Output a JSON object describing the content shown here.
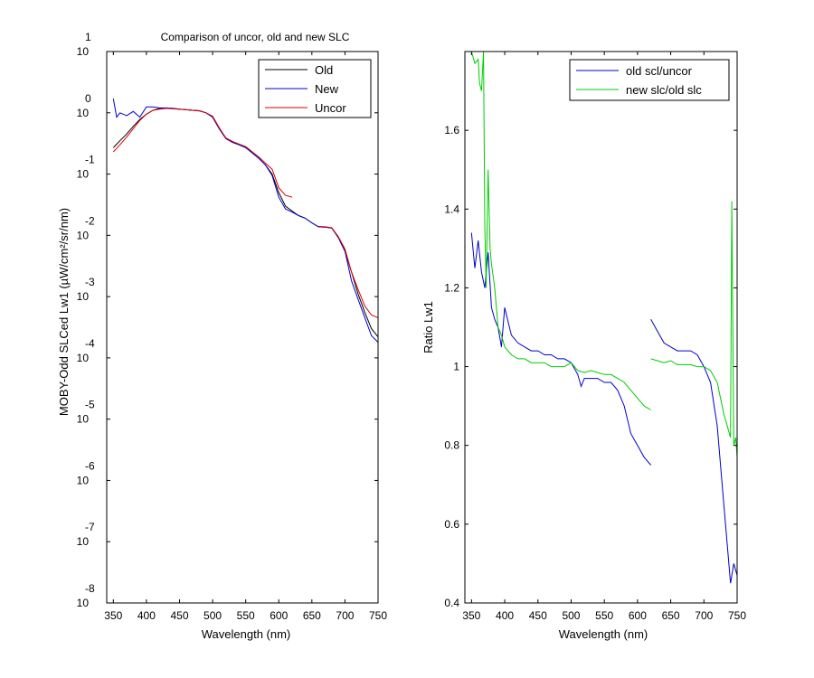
{
  "chart_data": [
    {
      "type": "line",
      "title": "Comparison of uncor, old and new SLC",
      "xlabel": "Wavelength (nm)",
      "ylabel": "MOBY-Odd SLCed Lw1 (µW/cm²/sr/nm)",
      "xlim": [
        340,
        750
      ],
      "ylim": [
        1e-08,
        10
      ],
      "yscale": "log",
      "x_ticks": [
        "350",
        "400",
        "450",
        "500",
        "550",
        "600",
        "650",
        "700",
        "750"
      ],
      "y_ticks": [
        {
          "base": "10",
          "exp": "1"
        },
        {
          "base": "10",
          "exp": "0"
        },
        {
          "base": "10",
          "exp": "-1"
        },
        {
          "base": "10",
          "exp": "-2"
        },
        {
          "base": "10",
          "exp": "-3"
        },
        {
          "base": "10",
          "exp": "-4"
        },
        {
          "base": "10",
          "exp": "-5"
        },
        {
          "base": "10",
          "exp": "-6"
        },
        {
          "base": "10",
          "exp": "-7"
        },
        {
          "base": "10",
          "exp": "-8"
        }
      ],
      "legend_position": "top-right",
      "series": [
        {
          "name": "Old",
          "color": "#000000",
          "x": [
            350,
            360,
            370,
            380,
            390,
            400,
            410,
            420,
            430,
            440,
            450,
            460,
            470,
            480,
            490,
            500,
            510,
            520,
            530,
            540,
            550,
            560,
            570,
            580,
            590,
            600,
            610,
            620,
            630,
            640,
            650,
            660,
            670,
            680,
            690,
            700,
            710,
            720,
            730,
            740,
            750
          ],
          "y": [
            0.27,
            0.35,
            0.45,
            0.6,
            0.78,
            0.95,
            1.1,
            1.18,
            1.2,
            1.18,
            1.15,
            1.12,
            1.1,
            1.08,
            1.0,
            0.85,
            0.55,
            0.38,
            0.33,
            0.3,
            0.27,
            0.22,
            0.18,
            0.14,
            0.1,
            0.05,
            0.03,
            0.025,
            0.021,
            0.019,
            0.016,
            0.0138,
            0.0136,
            0.0132,
            0.0092,
            0.0055,
            0.0025,
            0.0011,
            0.00055,
            0.0003,
            0.00022
          ]
        },
        {
          "name": "New",
          "color": "#0000cc",
          "x": [
            350,
            355,
            360,
            370,
            380,
            390,
            400,
            410,
            420,
            430,
            440,
            450,
            460,
            470,
            480,
            490,
            500,
            510,
            520,
            530,
            540,
            550,
            560,
            570,
            580,
            590,
            600,
            610,
            620,
            630,
            640,
            650,
            660,
            670,
            680,
            690,
            700,
            710,
            720,
            730,
            740,
            750
          ],
          "y": [
            1.7,
            0.85,
            1.0,
            0.9,
            1.05,
            0.85,
            1.25,
            1.25,
            1.2,
            1.2,
            1.18,
            1.15,
            1.12,
            1.1,
            1.08,
            1.0,
            0.85,
            0.55,
            0.38,
            0.33,
            0.3,
            0.27,
            0.22,
            0.18,
            0.14,
            0.095,
            0.042,
            0.027,
            0.024,
            0.021,
            0.019,
            0.016,
            0.0138,
            0.0136,
            0.0132,
            0.0092,
            0.0055,
            0.0018,
            0.0009,
            0.00045,
            0.00023,
            0.00018
          ]
        },
        {
          "name": "Uncor",
          "color": "#dd0000",
          "x": [
            350,
            360,
            370,
            380,
            390,
            400,
            410,
            420,
            430,
            440,
            450,
            460,
            470,
            480,
            490,
            500,
            510,
            520,
            530,
            540,
            550,
            560,
            570,
            580,
            590,
            600,
            610,
            620,
            630,
            640,
            650,
            660,
            670,
            680,
            690,
            700,
            710,
            720,
            730,
            740,
            750
          ],
          "y": [
            0.23,
            0.3,
            0.4,
            0.55,
            0.75,
            0.95,
            1.1,
            1.15,
            1.18,
            1.16,
            1.14,
            1.12,
            1.1,
            1.07,
            1.0,
            0.88,
            0.57,
            0.39,
            0.34,
            0.31,
            0.28,
            0.23,
            0.19,
            0.15,
            0.12,
            0.06,
            0.045,
            0.042,
            null,
            null,
            null,
            0.014,
            0.0138,
            0.0133,
            0.0095,
            0.006,
            0.0025,
            0.0013,
            0.0007,
            0.0005,
            0.00045
          ]
        }
      ]
    },
    {
      "type": "line",
      "title": "",
      "xlabel": "Wavelength (nm)",
      "ylabel": "Ratio Lw1",
      "xlim": [
        340,
        750
      ],
      "ylim": [
        0.4,
        1.8
      ],
      "x_ticks": [
        "350",
        "400",
        "450",
        "500",
        "550",
        "600",
        "650",
        "700",
        "750"
      ],
      "y_ticks": [
        "0.4",
        "0.6",
        "0.8",
        "1",
        "1.2",
        "1.4",
        "1.6"
      ],
      "legend_position": "top-right",
      "series": [
        {
          "name": "old scl/uncor",
          "color": "#0000cc",
          "x": [
            350,
            355,
            360,
            365,
            370,
            375,
            380,
            385,
            390,
            395,
            400,
            410,
            420,
            430,
            440,
            450,
            460,
            470,
            480,
            490,
            500,
            510,
            515,
            520,
            530,
            540,
            550,
            560,
            570,
            580,
            590,
            600,
            610,
            620,
            null,
            620,
            630,
            640,
            650,
            660,
            670,
            680,
            690,
            700,
            710,
            720,
            730,
            735,
            740,
            745,
            750
          ],
          "y": [
            1.34,
            1.25,
            1.32,
            1.24,
            1.2,
            1.29,
            1.15,
            1.12,
            1.1,
            1.05,
            1.15,
            1.08,
            1.06,
            1.05,
            1.04,
            1.04,
            1.03,
            1.03,
            1.02,
            1.02,
            1.01,
            0.98,
            0.95,
            0.97,
            0.97,
            0.97,
            0.96,
            0.96,
            0.94,
            0.9,
            0.83,
            0.8,
            0.77,
            0.75,
            null,
            1.12,
            1.09,
            1.06,
            1.05,
            1.04,
            1.04,
            1.04,
            1.03,
            1.0,
            0.96,
            0.85,
            0.65,
            0.55,
            0.45,
            0.5,
            0.47
          ]
        },
        {
          "name": "new slc/old slc",
          "color": "#00cc00",
          "x": [
            350,
            355,
            360,
            362,
            365,
            368,
            370,
            372,
            375,
            378,
            380,
            385,
            390,
            395,
            400,
            410,
            420,
            430,
            440,
            450,
            460,
            470,
            480,
            490,
            500,
            510,
            520,
            530,
            540,
            550,
            560,
            570,
            580,
            590,
            600,
            610,
            620,
            null,
            620,
            630,
            640,
            650,
            660,
            670,
            680,
            690,
            700,
            710,
            720,
            725,
            730,
            735,
            740,
            742,
            745,
            748,
            750
          ],
          "y": [
            1.8,
            1.77,
            1.78,
            1.72,
            1.7,
            1.8,
            1.36,
            1.2,
            1.5,
            1.3,
            1.26,
            1.2,
            1.1,
            1.08,
            1.05,
            1.03,
            1.02,
            1.02,
            1.01,
            1.01,
            1.01,
            1.0,
            1.0,
            1.0,
            1.01,
            0.99,
            0.985,
            0.99,
            0.985,
            0.98,
            0.98,
            0.97,
            0.96,
            0.94,
            0.92,
            0.9,
            0.89,
            null,
            1.02,
            1.015,
            1.01,
            1.015,
            1.005,
            1.005,
            1.005,
            1.0,
            1.0,
            0.99,
            0.96,
            0.92,
            0.88,
            0.85,
            0.82,
            1.42,
            0.8,
            0.82,
            0.77
          ]
        }
      ]
    }
  ]
}
